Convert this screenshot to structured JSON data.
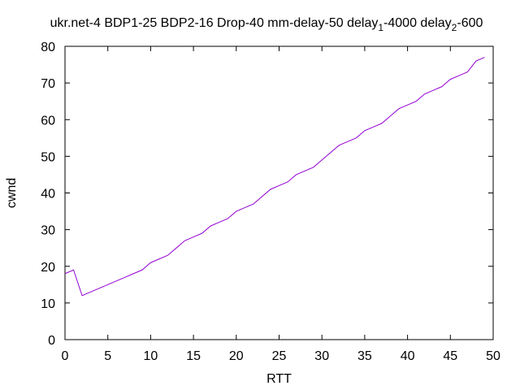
{
  "chart_data": {
    "type": "line",
    "title": "ukr.net-4 BDP1-25 BDP2-16 Drop-40 mm-delay-50 delay₁-4000 delay₂-600",
    "title_parts": [
      {
        "text": "ukr.net-4 BDP1-25 BDP2-16 Drop-40 mm-delay-50 delay",
        "sub": false
      },
      {
        "text": "1",
        "sub": true
      },
      {
        "text": "-4000 delay",
        "sub": false
      },
      {
        "text": "2",
        "sub": true
      },
      {
        "text": "-600",
        "sub": false
      }
    ],
    "xlabel": "RTT",
    "ylabel": "cwnd",
    "xlim": [
      0,
      50
    ],
    "ylim": [
      0,
      80
    ],
    "xticks": [
      0,
      5,
      10,
      15,
      20,
      25,
      30,
      35,
      40,
      45,
      50
    ],
    "yticks": [
      0,
      10,
      20,
      30,
      40,
      50,
      60,
      70,
      80
    ],
    "grid": false,
    "legend": "none",
    "series": [
      {
        "color": "#9400d3",
        "x": [
          0,
          1,
          2,
          3,
          4,
          5,
          6,
          7,
          8,
          9,
          10,
          11,
          12,
          13,
          14,
          15,
          16,
          17,
          18,
          19,
          20,
          21,
          22,
          23,
          24,
          25,
          26,
          27,
          28,
          29,
          30,
          31,
          32,
          33,
          34,
          35,
          36,
          37,
          38,
          39,
          40,
          41,
          42,
          43,
          44,
          45,
          46,
          47,
          48,
          49
        ],
        "y": [
          18,
          19,
          12,
          13,
          14,
          15,
          16,
          17,
          18,
          19,
          21,
          22,
          23,
          25,
          27,
          28,
          29,
          31,
          32,
          33,
          35,
          36,
          37,
          39,
          41,
          42,
          43,
          45,
          46,
          47,
          49,
          51,
          53,
          54,
          55,
          57,
          58,
          59,
          61,
          63,
          64,
          65,
          67,
          68,
          69,
          71,
          72,
          73,
          76,
          77
        ]
      }
    ]
  }
}
